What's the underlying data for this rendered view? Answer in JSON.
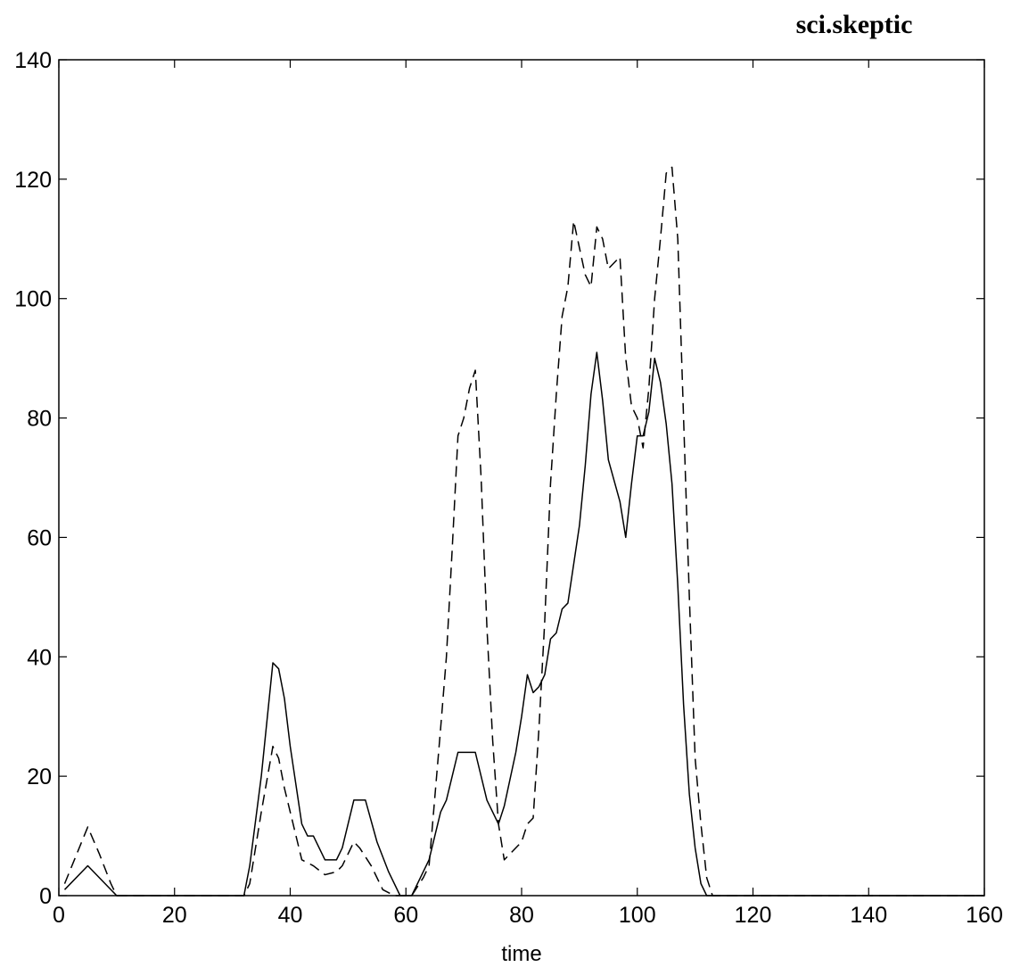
{
  "chart_data": {
    "type": "line",
    "title": "sci.skeptic",
    "xlabel": "time",
    "ylabel": "",
    "xlim": [
      0,
      160
    ],
    "ylim": [
      0,
      140
    ],
    "xticks": [
      0,
      20,
      40,
      60,
      80,
      100,
      120,
      140,
      160
    ],
    "yticks": [
      0,
      20,
      40,
      60,
      80,
      100,
      120,
      140
    ],
    "grid": false,
    "series": [
      {
        "style": "solid",
        "color": "#000000",
        "points": [
          [
            1,
            1
          ],
          [
            5,
            5
          ],
          [
            10,
            0
          ],
          [
            20,
            0
          ],
          [
            32,
            0
          ],
          [
            33,
            5
          ],
          [
            35,
            20
          ],
          [
            37,
            39
          ],
          [
            38,
            38
          ],
          [
            39,
            33
          ],
          [
            40,
            25
          ],
          [
            42,
            12
          ],
          [
            43,
            10
          ],
          [
            44,
            10
          ],
          [
            46,
            6
          ],
          [
            48,
            6
          ],
          [
            49,
            8
          ],
          [
            51,
            16
          ],
          [
            53,
            16
          ],
          [
            55,
            9
          ],
          [
            57,
            4
          ],
          [
            59,
            0
          ],
          [
            61,
            0
          ],
          [
            63,
            4
          ],
          [
            64,
            6
          ],
          [
            66,
            14
          ],
          [
            67,
            16
          ],
          [
            69,
            24
          ],
          [
            72,
            24
          ],
          [
            74,
            16
          ],
          [
            76,
            12
          ],
          [
            77,
            15
          ],
          [
            79,
            24
          ],
          [
            80,
            30
          ],
          [
            81,
            37
          ],
          [
            82,
            34
          ],
          [
            83,
            35
          ],
          [
            84,
            37
          ],
          [
            85,
            43
          ],
          [
            86,
            44
          ],
          [
            87,
            48
          ],
          [
            88,
            49
          ],
          [
            90,
            62
          ],
          [
            91,
            72
          ],
          [
            92,
            84
          ],
          [
            93,
            91
          ],
          [
            94,
            83
          ],
          [
            95,
            73
          ],
          [
            97,
            66
          ],
          [
            98,
            60
          ],
          [
            99,
            69
          ],
          [
            100,
            77
          ],
          [
            101,
            77
          ],
          [
            102,
            81
          ],
          [
            103,
            90
          ],
          [
            104,
            86
          ],
          [
            105,
            79
          ],
          [
            106,
            69
          ],
          [
            107,
            52
          ],
          [
            108,
            32
          ],
          [
            109,
            17
          ],
          [
            110,
            8
          ],
          [
            111,
            2
          ],
          [
            112,
            0
          ],
          [
            120,
            0
          ],
          [
            140,
            0
          ],
          [
            160,
            0
          ]
        ]
      },
      {
        "style": "dashed",
        "color": "#000000",
        "points": [
          [
            1,
            2
          ],
          [
            5,
            11.5
          ],
          [
            7,
            7
          ],
          [
            9,
            2
          ],
          [
            10,
            0
          ],
          [
            20,
            0
          ],
          [
            32,
            0
          ],
          [
            33,
            2
          ],
          [
            35,
            14
          ],
          [
            37,
            25
          ],
          [
            38,
            23
          ],
          [
            39,
            18
          ],
          [
            40,
            14
          ],
          [
            42,
            6
          ],
          [
            44,
            5
          ],
          [
            46,
            3.5
          ],
          [
            48,
            4
          ],
          [
            49,
            5
          ],
          [
            51,
            9
          ],
          [
            52,
            8
          ],
          [
            54,
            5
          ],
          [
            56,
            1
          ],
          [
            58,
            0
          ],
          [
            60,
            0
          ],
          [
            61,
            0
          ],
          [
            63,
            3
          ],
          [
            64,
            5
          ],
          [
            66,
            28
          ],
          [
            67,
            40
          ],
          [
            68,
            58
          ],
          [
            69,
            77
          ],
          [
            70,
            80
          ],
          [
            71,
            85
          ],
          [
            72,
            88
          ],
          [
            73,
            70
          ],
          [
            74,
            45
          ],
          [
            75,
            26
          ],
          [
            76,
            12
          ],
          [
            77,
            6
          ],
          [
            78,
            7
          ],
          [
            80,
            9
          ],
          [
            81,
            12
          ],
          [
            82,
            13
          ],
          [
            83,
            28
          ],
          [
            84,
            46
          ],
          [
            85,
            69
          ],
          [
            86,
            84
          ],
          [
            87,
            97
          ],
          [
            88,
            102
          ],
          [
            89,
            113
          ],
          [
            91,
            104
          ],
          [
            92,
            102
          ],
          [
            93,
            112
          ],
          [
            94,
            110
          ],
          [
            95,
            105
          ],
          [
            97,
            107
          ],
          [
            98,
            90
          ],
          [
            99,
            82
          ],
          [
            100,
            80
          ],
          [
            101,
            75
          ],
          [
            102,
            85
          ],
          [
            103,
            100
          ],
          [
            104,
            110
          ],
          [
            105,
            121
          ],
          [
            106,
            122
          ],
          [
            107,
            110
          ],
          [
            108,
            80
          ],
          [
            109,
            50
          ],
          [
            110,
            23
          ],
          [
            111,
            12
          ],
          [
            112,
            3
          ],
          [
            113,
            0
          ],
          [
            120,
            0
          ],
          [
            140,
            0
          ],
          [
            160,
            0
          ]
        ]
      }
    ]
  }
}
